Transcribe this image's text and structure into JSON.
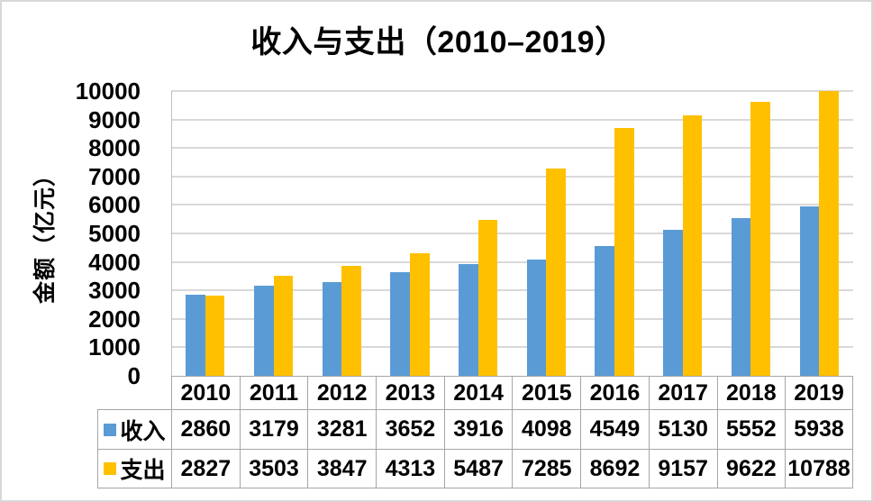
{
  "chart_data": {
    "type": "bar",
    "title": "收入与支出（2010–2019）",
    "xlabel": "",
    "ylabel": "金额（亿元）",
    "categories": [
      "2010",
      "2011",
      "2012",
      "2013",
      "2014",
      "2015",
      "2016",
      "2017",
      "2018",
      "2019"
    ],
    "series": [
      {
        "key": "income",
        "name": "收入",
        "color": "#5B9BD5",
        "values": [
          2860,
          3179,
          3281,
          3652,
          3916,
          4098,
          4549,
          5130,
          5552,
          5938
        ]
      },
      {
        "key": "expense",
        "name": "支出",
        "color": "#FFC000",
        "values": [
          2827,
          3503,
          3847,
          4313,
          5487,
          7285,
          8692,
          9157,
          9622,
          10788
        ]
      }
    ],
    "ylim": [
      0,
      10000
    ],
    "ytick_step": 1000,
    "ytick_labels": [
      "0",
      "1000",
      "2000",
      "3000",
      "4000",
      "5000",
      "6000",
      "7000",
      "8000",
      "9000",
      "10000"
    ],
    "grid": true,
    "legend_position": "data-table",
    "data_table_shown": true
  },
  "colors": {
    "income": "#5B9BD5",
    "expense": "#FFC000",
    "gridline": "#D9D9D9",
    "axis_line": "#BFBFBF",
    "table_border": "#A6A6A6",
    "background": "#FFFFFF",
    "text": "#000000"
  }
}
